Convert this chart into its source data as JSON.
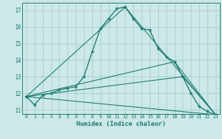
{
  "xlabel": "Humidex (Indice chaleur)",
  "bg_color": "#cce8e8",
  "grid_color": "#a8d0d0",
  "line_color": "#1a7a6e",
  "xlim": [
    -0.5,
    23.5
  ],
  "ylim": [
    10.75,
    17.45
  ],
  "yticks": [
    11,
    12,
    13,
    14,
    15,
    16,
    17
  ],
  "xticks": [
    0,
    1,
    2,
    3,
    4,
    5,
    6,
    7,
    8,
    9,
    10,
    11,
    12,
    13,
    14,
    15,
    16,
    17,
    18,
    19,
    20,
    21,
    22,
    23
  ],
  "lines": [
    {
      "x": [
        0,
        1,
        2,
        3,
        4,
        5,
        6,
        7,
        8,
        9,
        10,
        11,
        12,
        13,
        14,
        15,
        16,
        17,
        18,
        19,
        20,
        21,
        22,
        23
      ],
      "y": [
        11.8,
        11.3,
        11.9,
        12.0,
        12.2,
        12.3,
        12.4,
        13.0,
        14.5,
        15.9,
        16.5,
        17.1,
        17.2,
        16.5,
        15.9,
        15.8,
        14.7,
        14.2,
        13.9,
        13.0,
        12.0,
        11.2,
        10.9,
        10.7
      ]
    },
    {
      "x": [
        0,
        12,
        23
      ],
      "y": [
        11.8,
        17.2,
        10.7
      ]
    },
    {
      "x": [
        0,
        23
      ],
      "y": [
        11.8,
        10.7
      ]
    },
    {
      "x": [
        0,
        19,
        23
      ],
      "y": [
        11.8,
        13.0,
        10.7
      ]
    },
    {
      "x": [
        0,
        18,
        23
      ],
      "y": [
        11.8,
        13.9,
        10.7
      ]
    }
  ]
}
